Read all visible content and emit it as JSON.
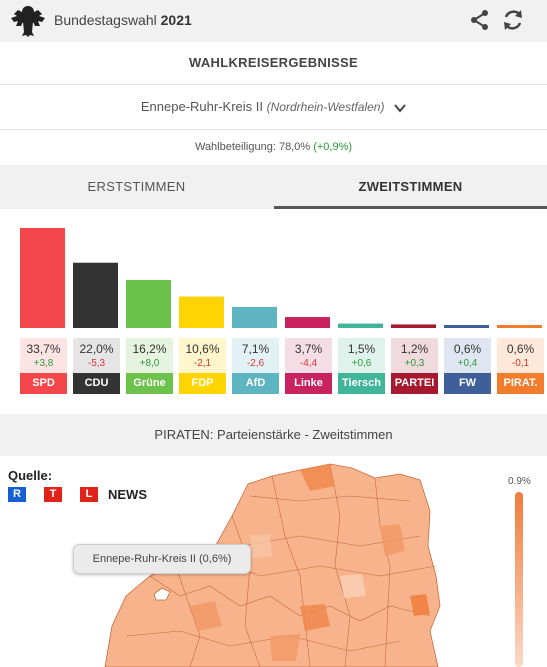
{
  "app": {
    "title_prefix": "Bundestagswahl",
    "title_year": "2021"
  },
  "section_title": "WAHLKREISERGEBNISSE",
  "district": {
    "name": "Ennepe-Ruhr-Kreis II",
    "state": "(Nordrhein-Westfalen)"
  },
  "turnout": {
    "label": "Wahlbeteiligung: 78,0%",
    "change": "(+0,9%)"
  },
  "tabs": [
    {
      "label": "ERSTSTIMMEN"
    },
    {
      "label": "ZWEITSTIMMEN"
    }
  ],
  "active_tab": "ZWEITSTIMMEN",
  "chart_data": {
    "type": "bar",
    "categories": [
      "SPD",
      "CDU",
      "Grüne",
      "FDP",
      "AfD",
      "Linke",
      "Tiersch",
      "PARTEI",
      "FW",
      "PIRAT."
    ],
    "values": [
      33.7,
      22.0,
      16.2,
      10.6,
      7.1,
      3.7,
      1.5,
      1.2,
      0.6,
      0.6
    ],
    "value_labels": [
      "33,7%",
      "22,0%",
      "16,2%",
      "10,6%",
      "7,1%",
      "3,7%",
      "1,5%",
      "1,2%",
      "0,6%",
      "0,6%"
    ],
    "changes": [
      "+3,8",
      "-5,3",
      "+8,0",
      "-2,1",
      "-2,6",
      "-4,4",
      "+0,6",
      "+0,3",
      "+0,4",
      "-0,1"
    ],
    "colors": [
      "#f4474b",
      "#333333",
      "#6cc24a",
      "#ffd400",
      "#5fb4c2",
      "#c8235f",
      "#40b59a",
      "#a6192e",
      "#3f5f9b",
      "#f07c2c"
    ],
    "tints": [
      "#fde4e4",
      "#e5e5e5",
      "#e6f4df",
      "#fff6cc",
      "#e2f1f4",
      "#f5dde6",
      "#dff2ec",
      "#f0dade",
      "#e0e6f1",
      "#fde8da"
    ],
    "ylim": [
      0,
      33.7
    ],
    "title": "",
    "xlabel": "",
    "ylabel": ""
  },
  "map": {
    "title": "PIRATEN: Parteienstärke - Zweitstimmen",
    "source_label": "Quelle:",
    "source_letters": [
      "R",
      "T",
      "L"
    ],
    "source_letter_colors": [
      "#1560d4",
      "#e2231a",
      "#e2231a"
    ],
    "source_news": "NEWS",
    "tooltip": "Ennepe-Ruhr-Kreis II (0,6%)",
    "legend_max": "0.9%"
  },
  "colors": {
    "bar_gray": "#f1f1f1",
    "positive": "#2b9a3a",
    "negative": "#dd3333",
    "map_base": "#f7b890"
  }
}
